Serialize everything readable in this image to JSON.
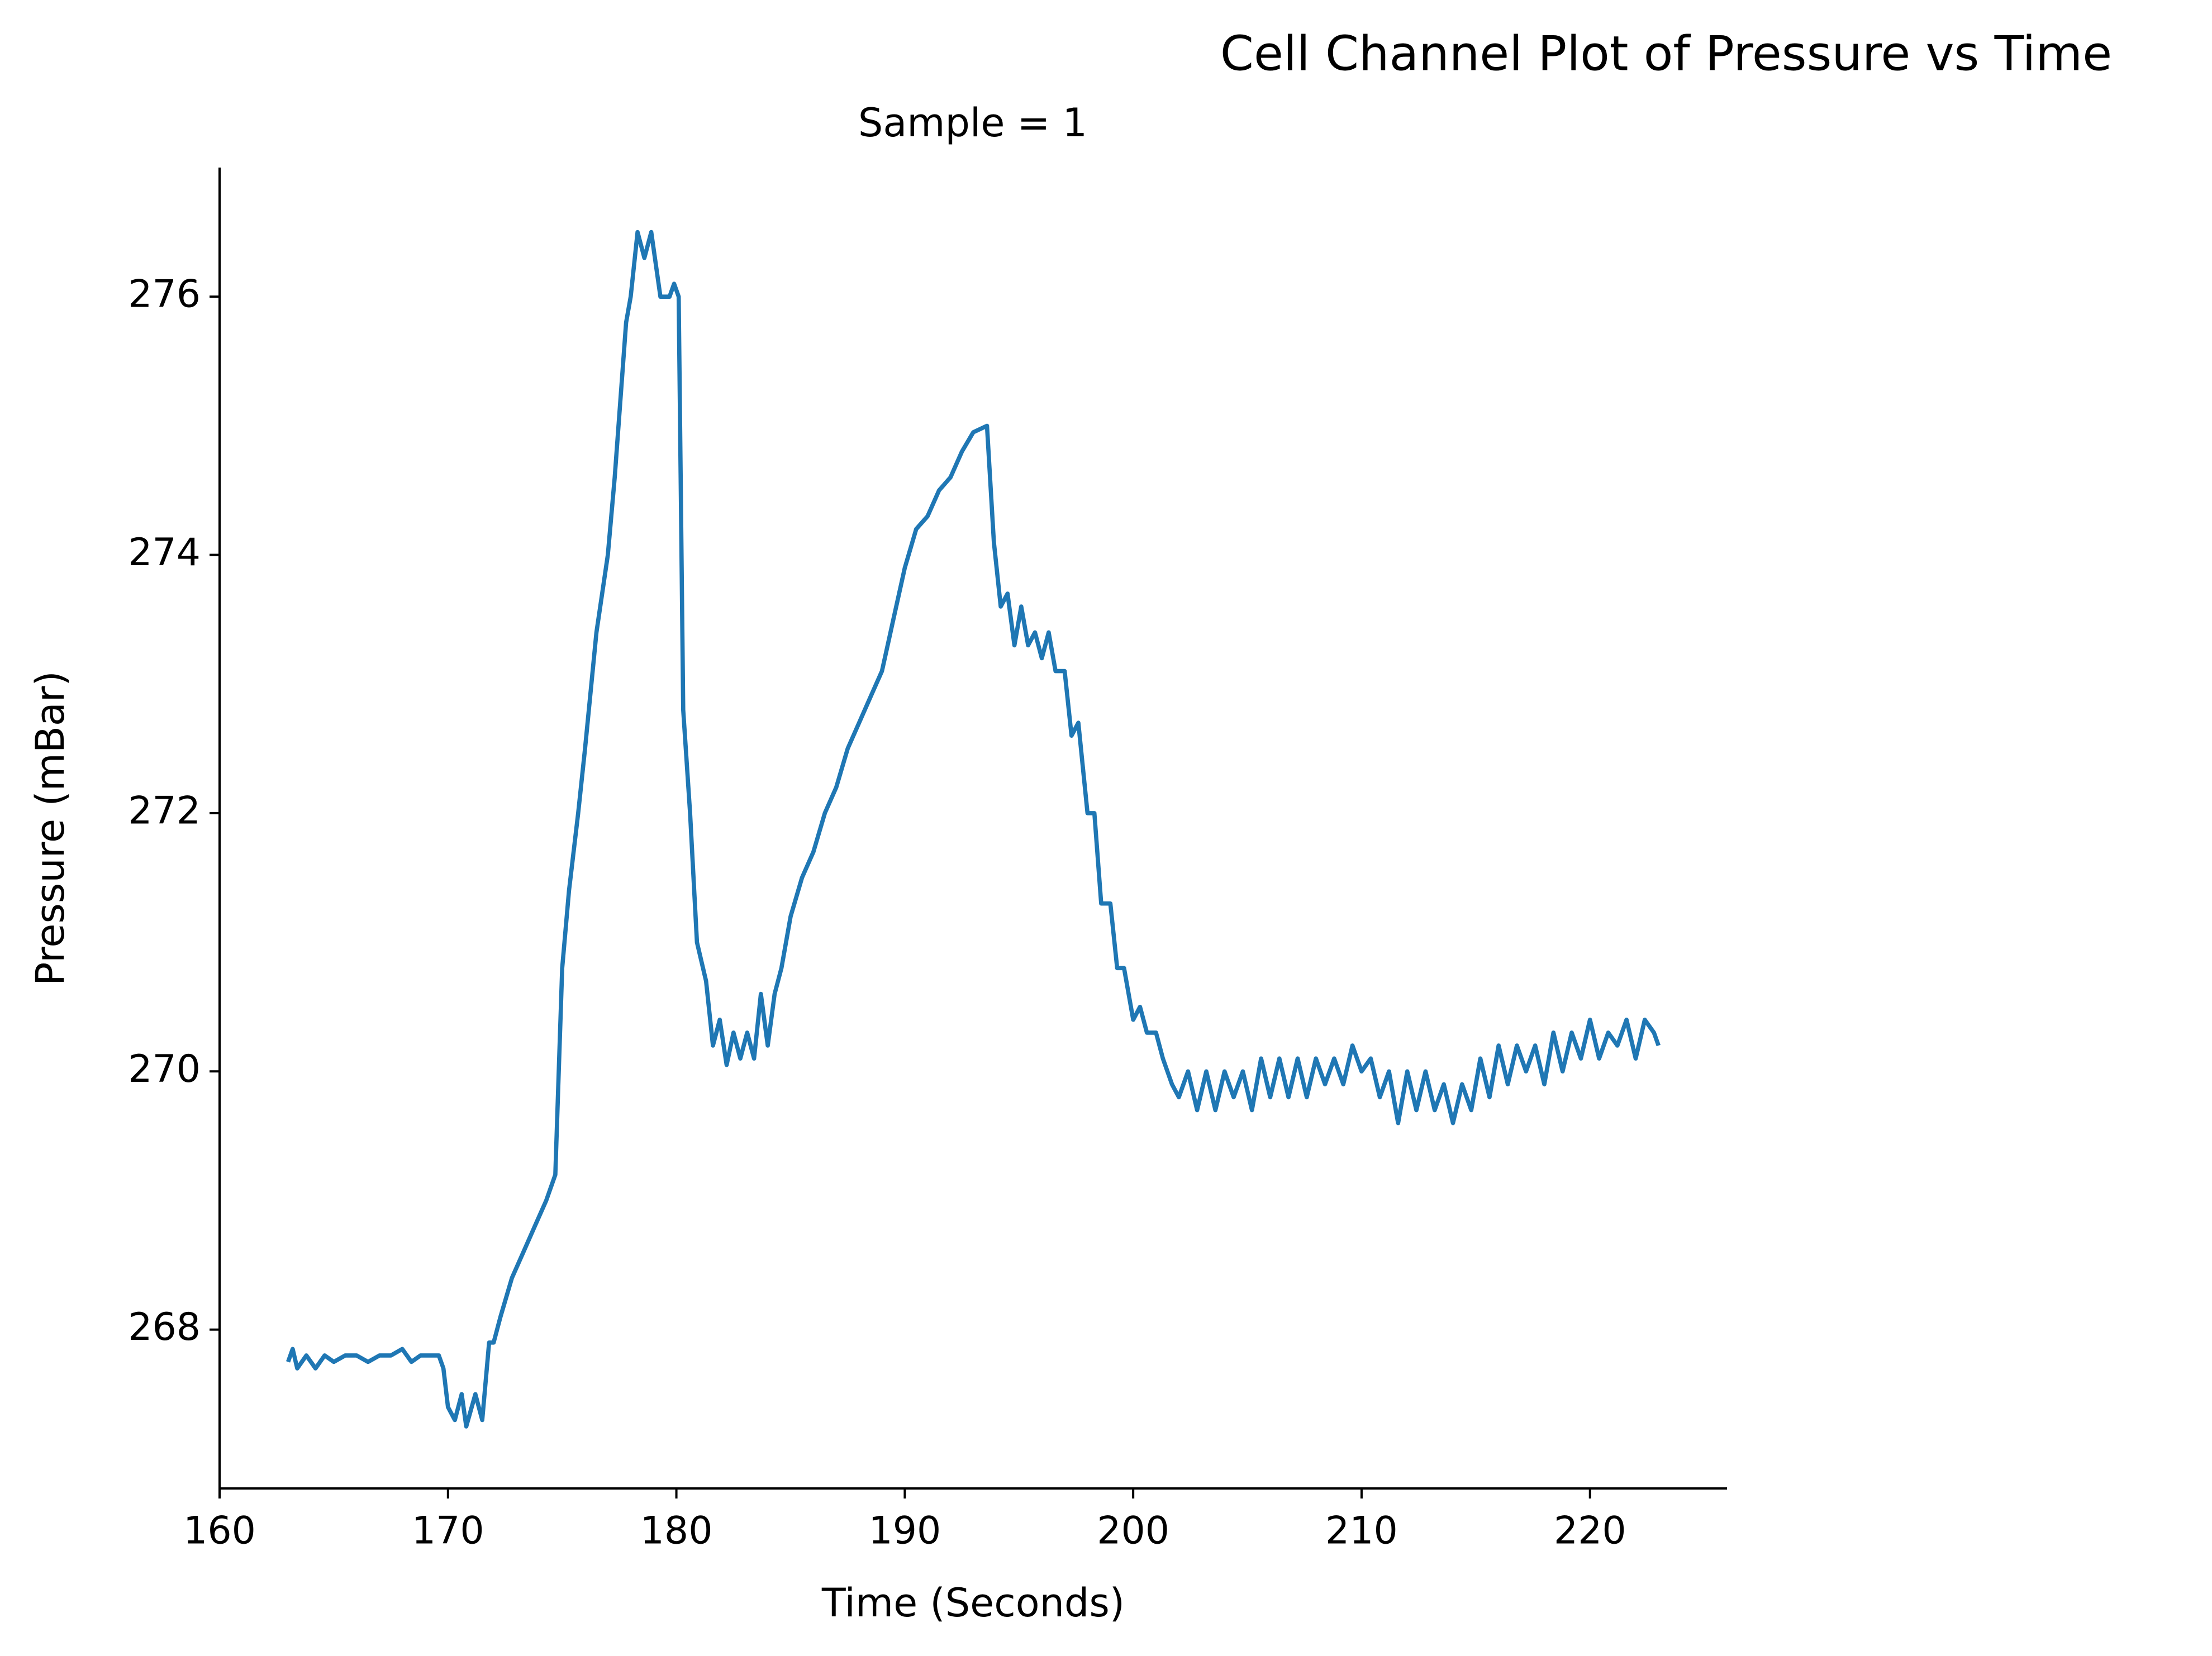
{
  "chart_data": {
    "type": "line",
    "title": "Cell Channel Plot of Pressure vs Time",
    "subtitle": "Sample = 1",
    "x_label": "Time (Seconds)",
    "y_label": "Pressure (mBar)",
    "color": "#1f77b4",
    "xlim": [
      160,
      226
    ],
    "xticks": [
      160,
      170,
      180,
      190,
      200,
      210,
      220
    ],
    "ylim": [
      266.77,
      277
    ],
    "yticks": [
      268,
      270,
      272,
      274,
      276
    ],
    "x": [
      163.0,
      163.2,
      163.4,
      163.8,
      164.2,
      164.6,
      165.0,
      165.5,
      166.0,
      166.5,
      167.0,
      167.5,
      168.0,
      168.4,
      168.8,
      169.2,
      169.6,
      169.8,
      170.0,
      170.3,
      170.6,
      170.8,
      171.2,
      171.5,
      171.8,
      172.0,
      172.3,
      172.8,
      173.3,
      173.8,
      174.3,
      174.7,
      175.0,
      175.3,
      175.7,
      176.0,
      176.5,
      177.0,
      177.3,
      177.8,
      178.0,
      178.3,
      178.6,
      178.9,
      179.3,
      179.7,
      179.9,
      180.1,
      180.3,
      180.6,
      180.9,
      181.3,
      181.6,
      181.9,
      182.2,
      182.5,
      182.8,
      183.1,
      183.4,
      183.7,
      184.0,
      184.3,
      184.6,
      185.0,
      185.5,
      186.0,
      186.5,
      187.0,
      187.5,
      188.0,
      188.5,
      189.0,
      189.5,
      190.0,
      190.5,
      191.0,
      191.5,
      192.0,
      192.5,
      193.0,
      193.6,
      193.9,
      194.2,
      194.5,
      194.8,
      195.1,
      195.4,
      195.7,
      196.0,
      196.3,
      196.6,
      197.0,
      197.3,
      197.6,
      198.0,
      198.3,
      198.6,
      199.0,
      199.3,
      199.6,
      200.0,
      200.3,
      200.6,
      201.0,
      201.3,
      201.7,
      202.0,
      202.4,
      202.8,
      203.2,
      203.6,
      204.0,
      204.4,
      204.8,
      205.2,
      205.6,
      206.0,
      206.4,
      206.8,
      207.2,
      207.6,
      208.0,
      208.4,
      208.8,
      209.2,
      209.6,
      210.0,
      210.4,
      210.8,
      211.2,
      211.6,
      212.0,
      212.4,
      212.8,
      213.2,
      213.6,
      214.0,
      214.4,
      214.8,
      215.2,
      215.6,
      216.0,
      216.4,
      216.8,
      217.2,
      217.6,
      218.0,
      218.4,
      218.8,
      219.2,
      219.6,
      220.0,
      220.4,
      220.8,
      221.2,
      221.6,
      222.0,
      222.4,
      222.8,
      223.0
    ],
    "values": [
      267.75,
      267.85,
      267.7,
      267.8,
      267.7,
      267.8,
      267.75,
      267.8,
      267.8,
      267.75,
      267.8,
      267.8,
      267.85,
      267.75,
      267.8,
      267.8,
      267.8,
      267.7,
      267.4,
      267.3,
      267.5,
      267.25,
      267.5,
      267.3,
      267.9,
      267.9,
      268.1,
      268.4,
      268.6,
      268.8,
      269.0,
      269.2,
      270.8,
      271.4,
      272.0,
      272.5,
      273.4,
      274.0,
      274.6,
      275.8,
      276.0,
      276.5,
      276.3,
      276.5,
      276.0,
      276.0,
      276.1,
      276.0,
      272.8,
      272.0,
      271.0,
      270.7,
      270.2,
      270.4,
      270.05,
      270.3,
      270.1,
      270.3,
      270.1,
      270.6,
      270.2,
      270.6,
      270.8,
      271.2,
      271.5,
      271.7,
      272.0,
      272.2,
      272.5,
      272.7,
      272.9,
      273.1,
      273.5,
      273.9,
      274.2,
      274.3,
      274.5,
      274.6,
      274.8,
      274.95,
      275.0,
      274.1,
      273.6,
      273.7,
      273.3,
      273.6,
      273.3,
      273.4,
      273.2,
      273.4,
      273.1,
      273.1,
      272.6,
      272.7,
      272.0,
      272.0,
      271.3,
      271.3,
      270.8,
      270.8,
      270.4,
      270.5,
      270.3,
      270.3,
      270.1,
      269.9,
      269.8,
      270.0,
      269.7,
      270.0,
      269.7,
      270.0,
      269.8,
      270.0,
      269.7,
      270.1,
      269.8,
      270.1,
      269.8,
      270.1,
      269.8,
      270.1,
      269.9,
      270.1,
      269.9,
      270.2,
      270.0,
      270.1,
      269.8,
      270.0,
      269.6,
      270.0,
      269.7,
      270.0,
      269.7,
      269.9,
      269.6,
      269.9,
      269.7,
      270.1,
      269.8,
      270.2,
      269.9,
      270.2,
      270.0,
      270.2,
      269.9,
      270.3,
      270.0,
      270.3,
      270.1,
      270.4,
      270.1,
      270.3,
      270.2,
      270.4,
      270.1,
      270.4,
      270.3,
      270.2
    ]
  }
}
